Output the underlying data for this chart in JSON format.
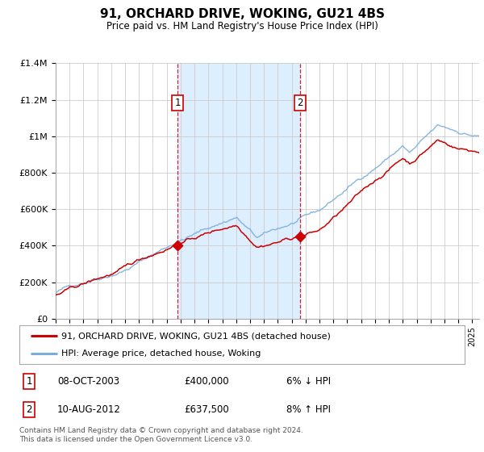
{
  "title": "91, ORCHARD DRIVE, WOKING, GU21 4BS",
  "subtitle": "Price paid vs. HM Land Registry's House Price Index (HPI)",
  "legend_line1": "91, ORCHARD DRIVE, WOKING, GU21 4BS (detached house)",
  "legend_line2": "HPI: Average price, detached house, Woking",
  "sale1_label": "1",
  "sale1_date": "08-OCT-2003",
  "sale1_price": "£400,000",
  "sale1_hpi": "6% ↓ HPI",
  "sale1_year": 2003.77,
  "sale1_value": 400000,
  "sale2_label": "2",
  "sale2_date": "10-AUG-2012",
  "sale2_price": "£637,500",
  "sale2_hpi": "8% ↑ HPI",
  "sale2_year": 2012.6,
  "sale2_value": 637500,
  "vline1_year": 2003.77,
  "vline2_year": 2012.6,
  "hpi_color": "#7aaddc",
  "price_color": "#cc0000",
  "vline_color": "#cc0000",
  "dot_color": "#cc0000",
  "background_color": "#ffffff",
  "band_color": "#ddeeff",
  "grid_color": "#cccccc",
  "ylim_min": 0,
  "ylim_max": 1400000,
  "yticks": [
    0,
    200000,
    400000,
    600000,
    800000,
    1000000,
    1200000,
    1400000
  ],
  "ytick_labels": [
    "£0",
    "£200K",
    "£400K",
    "£600K",
    "£800K",
    "£1M",
    "£1.2M",
    "£1.4M"
  ],
  "xmin": 1995,
  "xmax": 2025.5,
  "footnote": "Contains HM Land Registry data © Crown copyright and database right 2024.\nThis data is licensed under the Open Government Licence v3.0."
}
